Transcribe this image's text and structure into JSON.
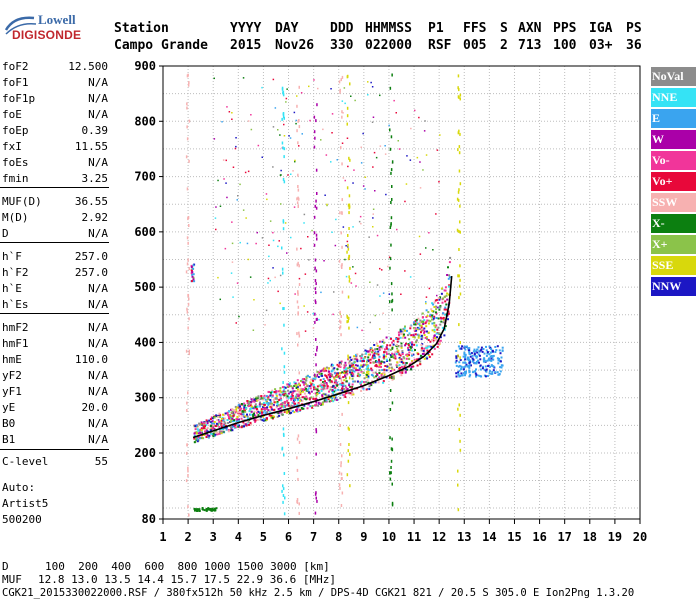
{
  "logo": {
    "line1": "Lowell",
    "line2": "DIGISONDE"
  },
  "header": {
    "labels": [
      "Station",
      "YYYY",
      "DAY",
      "DDD",
      "HHMMSS",
      "P1",
      "FFS",
      "S",
      "AXN",
      "PPS",
      "IGA",
      "PS"
    ],
    "values": [
      "Campo Grande",
      "2015",
      "Nov26",
      "330",
      "022000",
      "RSF",
      "005",
      "2",
      "713",
      "100",
      "03+",
      "36"
    ]
  },
  "params": [
    {
      "label": "foF2",
      "value": "12.500"
    },
    {
      "label": "foF1",
      "value": "N/A"
    },
    {
      "label": "foF1p",
      "value": "N/A"
    },
    {
      "label": "foE",
      "value": "N/A"
    },
    {
      "label": "foEp",
      "value": "0.39"
    },
    {
      "label": "fxI",
      "value": "11.55"
    },
    {
      "label": "foEs",
      "value": "N/A"
    },
    {
      "label": "fmin",
      "value": "3.25"
    },
    {
      "label": "MUF(D)",
      "value": "36.55"
    },
    {
      "label": "M(D)",
      "value": "2.92"
    },
    {
      "label": "D",
      "value": "N/A"
    },
    {
      "label": "h`F",
      "value": "257.0"
    },
    {
      "label": "h`F2",
      "value": "257.0"
    },
    {
      "label": "h`E",
      "value": "N/A"
    },
    {
      "label": "h`Es",
      "value": "N/A"
    },
    {
      "label": "hmF2",
      "value": "N/A"
    },
    {
      "label": "hmF1",
      "value": "N/A"
    },
    {
      "label": "hmE",
      "value": "110.0"
    },
    {
      "label": "yF2",
      "value": "N/A"
    },
    {
      "label": "yF1",
      "value": "N/A"
    },
    {
      "label": "yE",
      "value": "20.0"
    },
    {
      "label": "B0",
      "value": "N/A"
    },
    {
      "label": "B1",
      "value": "N/A"
    },
    {
      "label": "C-level",
      "value": "55"
    }
  ],
  "auto": {
    "line1": "Auto:",
    "line2": "Artist5",
    "line3": "500200"
  },
  "legend": [
    {
      "label": "NoVal",
      "color": "#8c8c8c"
    },
    {
      "label": "NNE",
      "color": "#35e3f5"
    },
    {
      "label": "E",
      "color": "#3aa4ef"
    },
    {
      "label": "W",
      "color": "#aa00a8"
    },
    {
      "label": "Vo-",
      "color": "#f1359a"
    },
    {
      "label": "Vo+",
      "color": "#e8083a"
    },
    {
      "label": "SSW",
      "color": "#f7b1b1"
    },
    {
      "label": "X-",
      "color": "#0c7f10"
    },
    {
      "label": "X+",
      "color": "#8bc34a"
    },
    {
      "label": "SSE",
      "color": "#d8d80c"
    },
    {
      "label": "NNW",
      "color": "#1c17c4"
    }
  ],
  "footer": {
    "d_label": "D",
    "d_values": "100  200  400  600  800 1000 1500 3000 [km]",
    "muf_label": "MUF",
    "muf_values": "12.8 13.0 13.5 14.4 15.7 17.5 22.9 36.6 [MHz]",
    "file_line": "CGK21_2015330022000.RSF / 380fx512h 50 kHz 2.5 km / DPS-4D CGK21 821 / 20.5 S 305.0 E Ion2Png 1.3.20"
  },
  "chart_data": {
    "type": "scatter",
    "title": "",
    "xlabel": "",
    "ylabel": "",
    "xlim": [
      1,
      20
    ],
    "ylim": [
      80,
      900
    ],
    "xticks": [
      "1",
      "2",
      "3",
      "4",
      "5",
      "6",
      "7",
      "8",
      "9",
      "10",
      "11",
      "12",
      "13",
      "14",
      "15",
      "16",
      "17",
      "18",
      "19",
      "20"
    ],
    "yticks": [
      "80",
      "200",
      "300",
      "400",
      "500",
      "600",
      "700",
      "800",
      "900"
    ],
    "ytick_values": [
      80,
      200,
      300,
      400,
      500,
      600,
      700,
      800,
      900
    ],
    "grid": true,
    "trace": {
      "name": "",
      "x": [
        2.2,
        3.0,
        4.0,
        5.0,
        6.0,
        7.0,
        8.0,
        9.0,
        10.0,
        10.8,
        11.4,
        11.9,
        12.2,
        12.4,
        12.5
      ],
      "y": [
        228,
        240,
        255,
        268,
        280,
        293,
        307,
        322,
        340,
        357,
        375,
        398,
        425,
        470,
        520
      ]
    }
  }
}
